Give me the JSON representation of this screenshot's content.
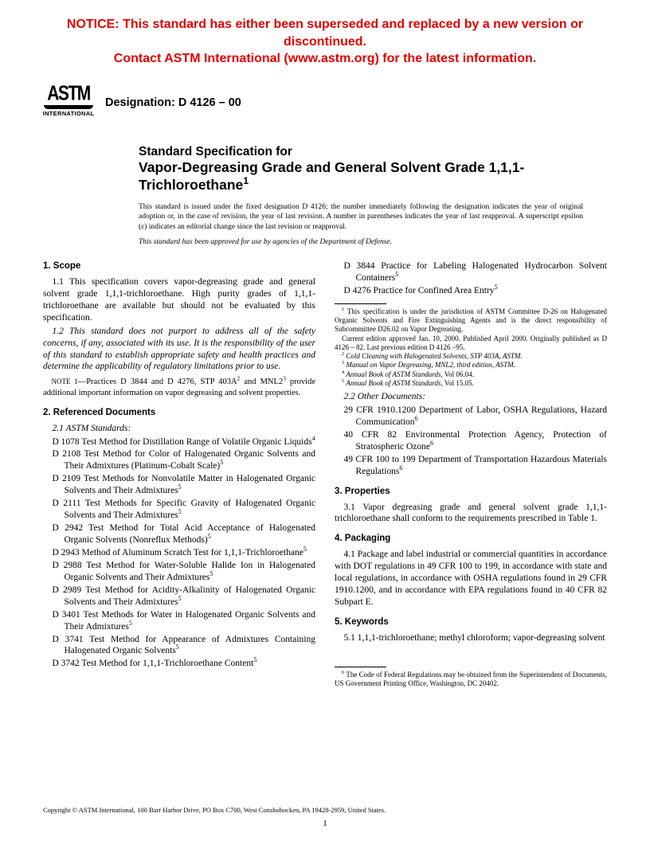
{
  "notice": {
    "line1": "NOTICE: This standard has either been superseded and replaced by a new version or discontinued.",
    "line2": "Contact ASTM International (www.astm.org) for the latest information.",
    "color": "#e30000"
  },
  "logo": {
    "text": "ASTM",
    "sub": "INTERNATIONAL"
  },
  "designation": "Designation: D 4126 – 00",
  "title": {
    "lead": "Standard Specification for",
    "main": "Vapor-Degreasing Grade and General Solvent Grade 1,1,1-Trichloroethane",
    "sup": "1"
  },
  "boilerplate": "This standard is issued under the fixed designation D 4126; the number immediately following the designation indicates the year of original adoption or, in the case of revision, the year of last revision. A number in parentheses indicates the year of last reapproval. A superscript epsilon (ε) indicates an editorial change since the last revision or reapproval.",
  "approval": "This standard has been approved for use by agencies of the Department of Defense.",
  "sections": {
    "scope": {
      "head": "1. Scope",
      "p11": "1.1 This specification covers vapor-degreasing grade and general solvent grade 1,1,1-trichloroethane. High purity grades of 1,1,1-trichloroethane are available but should not be evaluated by this specification.",
      "p12": "1.2 This standard does not purport to address all of the safety concerns, if any, associated with its use. It is the responsibility of the user of this standard to establish appropriate safety and health practices and determine the applicability of regulatory limitations prior to use.",
      "note_label": "NOTE 1",
      "note": "—Practices D 3844 and D 4276, STP 403A",
      "note_sup2": "2",
      "note_mid": " and MNL2",
      "note_sup3": "3",
      "note_end": " provide additional important information on vapor degreasing and solvent properties."
    },
    "refs": {
      "head": "2. Referenced Documents",
      "astm_label": "2.1 ASTM Standards:",
      "items": [
        {
          "t": "D 1078 Test Method for Distillation Range of Volatile Organic Liquids",
          "s": "4"
        },
        {
          "t": "D 2108 Test Method for Color of Halogenated Organic Solvents and Their Admixtures (Platinum-Cobalt Scale)",
          "s": "5"
        },
        {
          "t": "D 2109 Test Methods for Nonvolatile Matter in Halogenated Organic Solvents and Their Admixtures",
          "s": "5"
        },
        {
          "t": "D 2111 Test Methods for Specific Gravity of Halogenated Organic Solvents and Their Admixtures",
          "s": "5"
        },
        {
          "t": "D 2942 Test Method for Total Acid Acceptance of Halogenated Organic Solvents (Nonreflux Methods)",
          "s": "5"
        },
        {
          "t": "D 2943 Method of Aluminum Scratch Test for 1,1,1-Trichloroethane",
          "s": "5"
        },
        {
          "t": "D 2988 Test Method for Water-Soluble Halide Ion in Halogenated Organic Solvents and Their Admixtures",
          "s": "5"
        },
        {
          "t": "D 2989 Test Method for Acidity-Alkalinity of Halogenated Organic Solvents and Their Admixtures",
          "s": "5"
        },
        {
          "t": "D 3401 Test Methods for Water in Halogenated Organic Solvents and Their Admixtures",
          "s": "5"
        },
        {
          "t": "D 3741 Test Method for Appearance of Admixtures Containing Halogenated Organic Solvents",
          "s": "5"
        },
        {
          "t": "D 3742 Test Method for 1,1,1-Trichloroethane Content",
          "s": "5"
        },
        {
          "t": "D 3844 Practice for Labeling Halogenated Hydrocarbon Solvent Containers",
          "s": "5"
        },
        {
          "t": "D 4276 Practice for Confined Area Entry",
          "s": "5"
        }
      ],
      "other_label": "2.2 Other Documents:",
      "other": [
        {
          "t": "29 CFR 1910.1200 Department of Labor, OSHA Regulations, Hazard Communication",
          "s": "6"
        },
        {
          "t": "40 CFR 82  Environmental Protection Agency, Protection of Stratospheric Ozone",
          "s": "6"
        },
        {
          "t": "49 CFR 100 to 199 Department of Transportation Hazardous Materials Regulations",
          "s": "6"
        }
      ]
    },
    "props": {
      "head": "3. Properties",
      "p": "3.1 Vapor degreasing grade and general solvent grade 1,1,1-trichloroethane shall conform to the requirements prescribed in Table 1."
    },
    "pack": {
      "head": "4. Packaging",
      "p": "4.1 Package and label industrial or commercial quantities in accordance with DOT regulations in 49 CFR 100 to 199, in accordance with state and local regulations, in accordance with OSHA regulations found in 29 CFR 1910.1200, and in accordance with EPA regulations found in 40 CFR 82 Subpart E."
    },
    "keys": {
      "head": "5. Keywords",
      "p": "5.1 1,1,1-trichloroethane; methyl chloroform; vapor-degreasing solvent"
    }
  },
  "footnotes_left": [
    {
      "s": "1",
      "t": "This specification is under the jurisdiction of ASTM Committee D-26 on Halogenated Organic Solvents and Fire Extinguishing Agents and is the direct responsibility of Subcommittee D26.02 on Vapor Degreasing."
    },
    {
      "s": "",
      "t": "Current edition approved Jan. 10, 2000. Published April 2000. Originally published as D 4126 – 82. Last previous edition D 4126 –95."
    },
    {
      "s": "2",
      "t": "Cold Cleaning with Halogenated Solvents, STP 403A, ASTM.",
      "i": true
    },
    {
      "s": "3",
      "t": "Manual on Vapor Degreasing, MNL2, third edition, ASTM.",
      "i": true
    },
    {
      "s": "4",
      "t": "Annual Book of ASTM Standards, Vol 06.04.",
      "ip": true
    },
    {
      "s": "5",
      "t": "Annual Book of ASTM Standards, Vol 15.05.",
      "ip": true
    }
  ],
  "footnote_right": {
    "s": "6",
    "t": "The Code of Federal Regulations may be obtained from the Superintendent of Documents, US Government Printing Office, Washington, DC 20402."
  },
  "copyright": "Copyright © ASTM International, 100 Barr Harbor Drive, PO Box C700, West Conshohocken, PA 19428-2959, United States.",
  "pagenum": "1"
}
